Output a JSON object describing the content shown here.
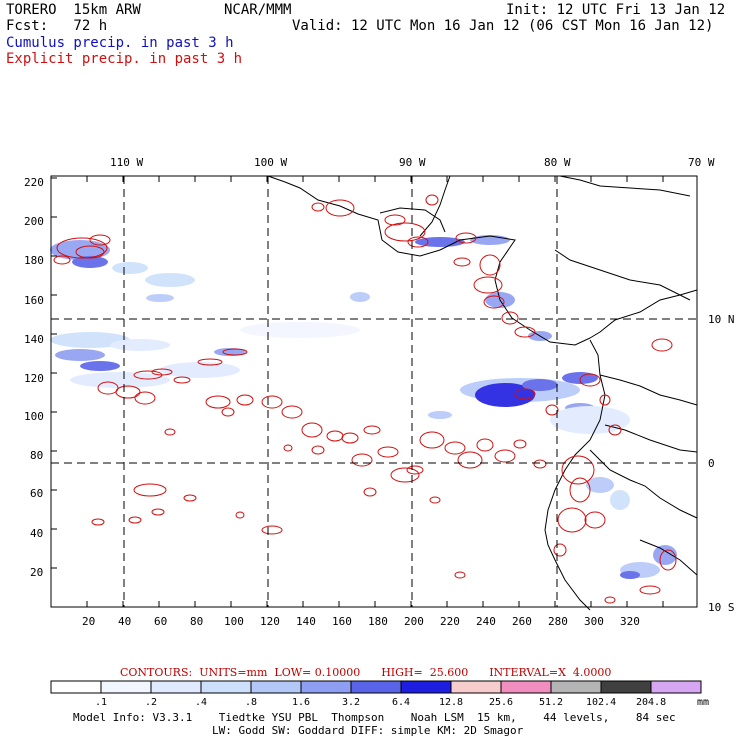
{
  "header": {
    "model": "TORERO  15km ARW",
    "center": "NCAR/MMM",
    "init": "Init: 12 UTC Fri 13 Jan 12",
    "fcst": "Fcst:   72 h",
    "valid": "Valid: 12 UTC Mon 16 Jan 12 (06 CST Mon 16 Jan 12)",
    "legend_cumulus": "Cumulus precip. in past 3 h",
    "legend_explicit": "Explicit precip. in past 3 h"
  },
  "axes": {
    "top_ticks": [
      "110 W",
      "100 W",
      "90 W",
      "80 W",
      "70 W"
    ],
    "right_ticks": [
      "10 N",
      "0",
      "10 S"
    ],
    "y_ticks": [
      "20",
      "40",
      "60",
      "80",
      "100",
      "120",
      "140",
      "160",
      "180",
      "200",
      "220"
    ],
    "x_ticks": [
      "20",
      "40",
      "60",
      "80",
      "100",
      "120",
      "140",
      "160",
      "180",
      "200",
      "220",
      "240",
      "260",
      "280",
      "300",
      "320"
    ]
  },
  "contour_info": {
    "label": "CONTOURS:  UNITS=mm  LOW= 0.10000      HIGH=  25.600      INTERVAL=X  4.0000"
  },
  "colorbar": {
    "labels": [
      ".1",
      ".2",
      ".4",
      ".8",
      "1.6",
      "3.2",
      "6.4",
      "12.8",
      "25.6",
      "51.2",
      "102.4",
      "204.8"
    ],
    "unit": "mm",
    "colors": [
      "#ffffff",
      "#f2f6ff",
      "#e0eafe",
      "#cde0fb",
      "#b4c8f8",
      "#8e9ef2",
      "#5a64e8",
      "#1e1ee0",
      "#f7cccc",
      "#f08fbf",
      "#b4b4b4",
      "#404040",
      "#d7a6f2"
    ]
  },
  "footer": {
    "line1": "Model Info: V3.3.1    Tiedtke YSU PBL  Thompson    Noah LSM  15 km,    44 levels,    84 sec",
    "line2": "LW: Godd SW: Goddard DIFF: simple KM: 2D Smagor"
  },
  "colors": {
    "contour": "#d01010",
    "coast": "#000000",
    "cumulus_dark": "#1e1ee0",
    "cumulus_light": "#b4c8f8"
  }
}
